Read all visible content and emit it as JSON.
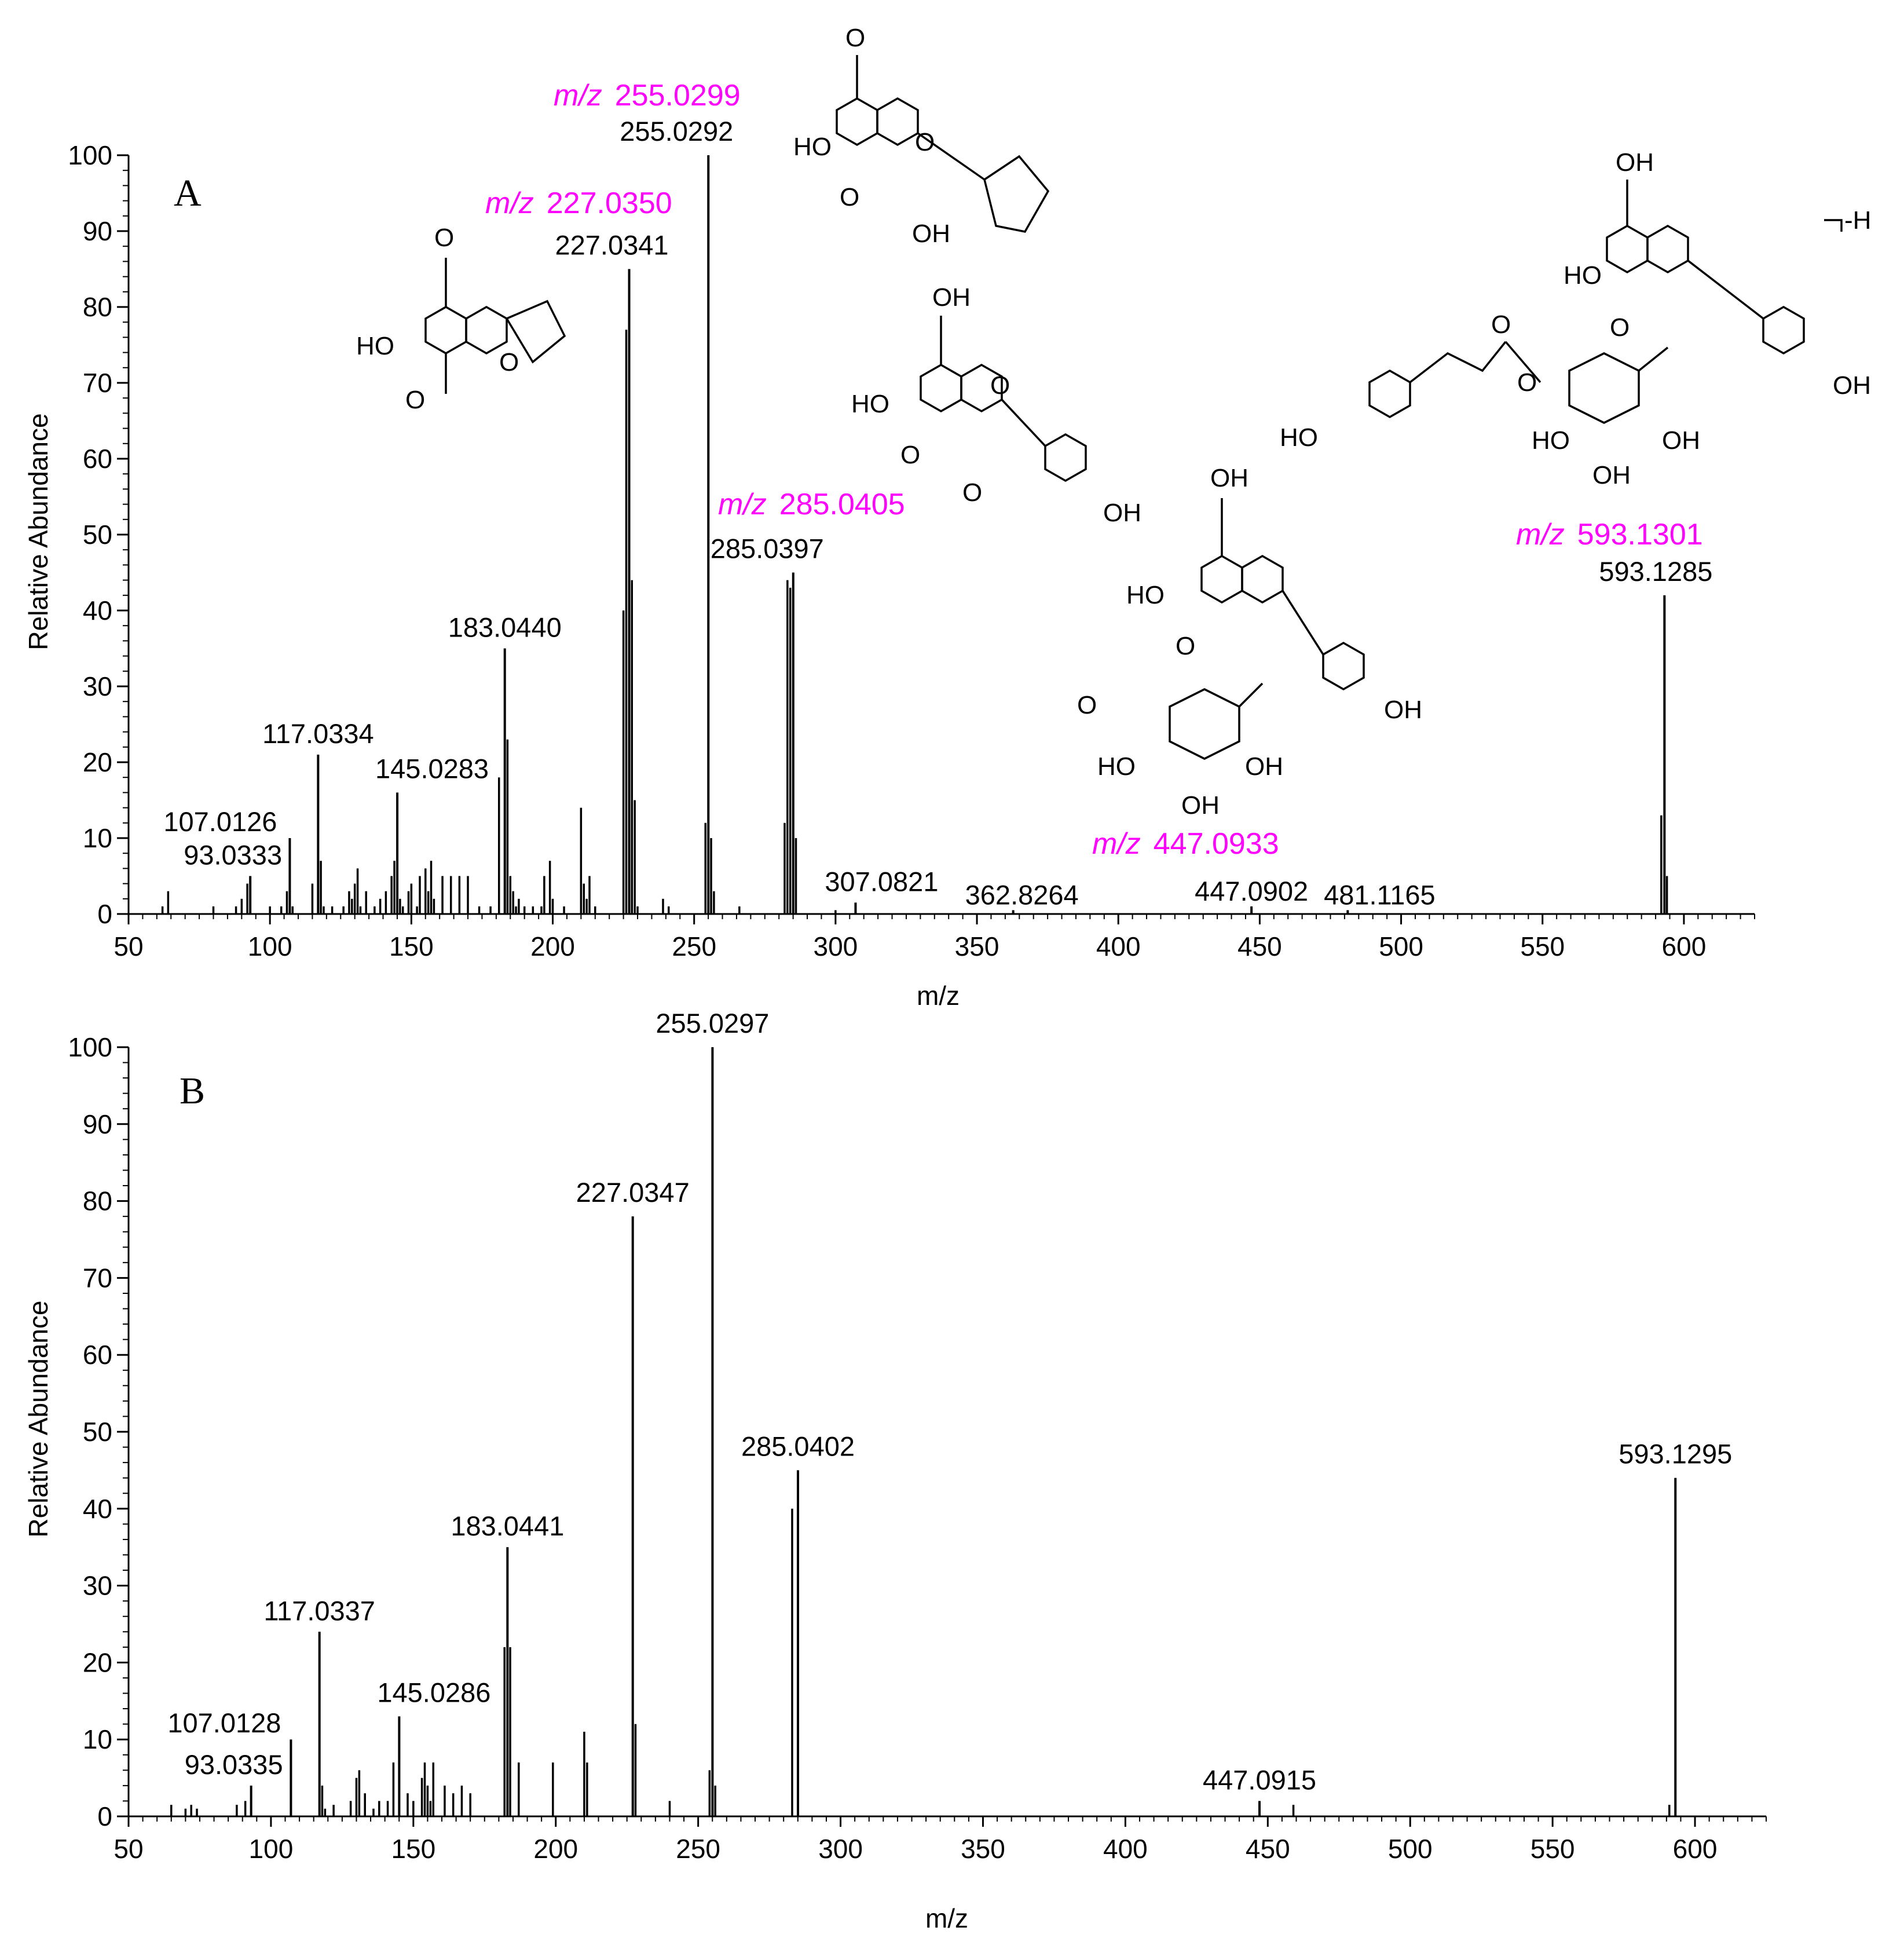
{
  "chart_data": [
    {
      "type": "bar",
      "panel_label": "A",
      "xlabel": "m/z",
      "ylabel": "Relative Abundance",
      "xlim": [
        50,
        625
      ],
      "ylim": [
        0,
        100
      ],
      "x_ticks": [
        "50",
        "100",
        "150",
        "200",
        "250",
        "300",
        "350",
        "400",
        "450",
        "500",
        "550",
        "600"
      ],
      "y_ticks": [
        "0",
        "10",
        "20",
        "30",
        "40",
        "50",
        "60",
        "70",
        "80",
        "90",
        "100"
      ],
      "labeled_peaks": [
        {
          "mz": 93.0333,
          "intensity": 5,
          "label": "93.0333"
        },
        {
          "mz": 107.0126,
          "intensity": 10,
          "label": "107.0126"
        },
        {
          "mz": 117.0334,
          "intensity": 21,
          "label": "117.0334"
        },
        {
          "mz": 145.0283,
          "intensity": 16,
          "label": "145.0283"
        },
        {
          "mz": 183.044,
          "intensity": 35,
          "label": "183.0440"
        },
        {
          "mz": 227.0341,
          "intensity": 85,
          "label": "227.0341"
        },
        {
          "mz": 255.0292,
          "intensity": 100,
          "label": "255.0292"
        },
        {
          "mz": 285.0397,
          "intensity": 45,
          "label": "285.0397"
        },
        {
          "mz": 307.0821,
          "intensity": 1.5,
          "label": "307.0821"
        },
        {
          "mz": 362.8264,
          "intensity": 0.5,
          "label": "362.8264"
        },
        {
          "mz": 447.0902,
          "intensity": 1,
          "label": "447.0902"
        },
        {
          "mz": 481.1165,
          "intensity": 0.5,
          "label": "481.1165"
        },
        {
          "mz": 593.1285,
          "intensity": 42,
          "label": "593.1285"
        }
      ],
      "minor_peaks": [
        [
          62,
          1
        ],
        [
          64,
          3
        ],
        [
          80,
          1
        ],
        [
          88,
          1
        ],
        [
          90,
          2
        ],
        [
          92,
          4
        ],
        [
          100,
          1
        ],
        [
          104,
          1
        ],
        [
          106,
          3
        ],
        [
          108,
          1
        ],
        [
          115,
          4
        ],
        [
          118,
          7
        ],
        [
          119,
          1
        ],
        [
          122,
          1
        ],
        [
          126,
          1
        ],
        [
          128,
          3
        ],
        [
          129,
          2
        ],
        [
          130,
          4
        ],
        [
          131,
          6
        ],
        [
          132,
          1
        ],
        [
          134,
          3
        ],
        [
          137,
          1
        ],
        [
          139,
          2
        ],
        [
          141,
          3
        ],
        [
          143,
          5
        ],
        [
          144,
          7
        ],
        [
          146,
          2
        ],
        [
          147,
          1
        ],
        [
          149,
          3
        ],
        [
          150,
          4
        ],
        [
          152,
          1
        ],
        [
          153,
          5
        ],
        [
          155,
          6
        ],
        [
          156,
          3
        ],
        [
          157,
          7
        ],
        [
          158,
          2
        ],
        [
          161,
          5
        ],
        [
          164,
          5
        ],
        [
          167,
          5
        ],
        [
          170,
          5
        ],
        [
          174,
          1
        ],
        [
          178,
          1
        ],
        [
          181,
          18
        ],
        [
          184,
          23
        ],
        [
          185,
          5
        ],
        [
          186,
          3
        ],
        [
          187,
          1
        ],
        [
          188,
          2
        ],
        [
          190,
          1
        ],
        [
          193,
          1
        ],
        [
          196,
          1
        ],
        [
          197,
          5
        ],
        [
          199,
          7
        ],
        [
          200,
          2
        ],
        [
          204,
          1
        ],
        [
          210,
          14
        ],
        [
          211,
          4
        ],
        [
          212,
          2
        ],
        [
          213,
          5
        ],
        [
          215,
          1
        ],
        [
          225,
          40
        ],
        [
          226,
          77
        ],
        [
          228,
          44
        ],
        [
          229,
          15
        ],
        [
          230,
          1
        ],
        [
          239,
          2
        ],
        [
          241,
          1
        ],
        [
          254,
          12
        ],
        [
          256,
          10
        ],
        [
          257,
          3
        ],
        [
          266,
          1
        ],
        [
          282,
          12
        ],
        [
          283,
          44
        ],
        [
          284,
          43
        ],
        [
          286,
          10
        ],
        [
          300,
          0.5
        ],
        [
          592,
          13
        ],
        [
          594,
          5
        ]
      ],
      "predicted_labels": [
        {
          "prefix": "m/z",
          "value": "255.0299"
        },
        {
          "prefix": "m/z",
          "value": "227.0350"
        },
        {
          "prefix": "m/z",
          "value": "285.0405"
        },
        {
          "prefix": "m/z",
          "value": "593.1301"
        },
        {
          "prefix": "m/z",
          "value": "447.0933"
        }
      ],
      "structure_text": {
        "adduct": "-H"
      }
    },
    {
      "type": "bar",
      "panel_label": "B",
      "xlabel": "m/z",
      "ylabel": "Relative Abundance",
      "xlim": [
        50,
        625
      ],
      "ylim": [
        0,
        100
      ],
      "x_ticks": [
        "50",
        "100",
        "150",
        "200",
        "250",
        "300",
        "350",
        "400",
        "450",
        "500",
        "550",
        "600"
      ],
      "y_ticks": [
        "0",
        "10",
        "20",
        "30",
        "40",
        "50",
        "60",
        "70",
        "80",
        "90",
        "100"
      ],
      "labeled_peaks": [
        {
          "mz": 93.0335,
          "intensity": 4,
          "label": "93.0335"
        },
        {
          "mz": 107.0128,
          "intensity": 10,
          "label": "107.0128"
        },
        {
          "mz": 117.0337,
          "intensity": 24,
          "label": "117.0337"
        },
        {
          "mz": 145.0286,
          "intensity": 13,
          "label": "145.0286"
        },
        {
          "mz": 183.0441,
          "intensity": 35,
          "label": "183.0441"
        },
        {
          "mz": 227.0347,
          "intensity": 78,
          "label": "227.0347"
        },
        {
          "mz": 255.0297,
          "intensity": 100,
          "label": "255.0297"
        },
        {
          "mz": 285.0402,
          "intensity": 45,
          "label": "285.0402"
        },
        {
          "mz": 447.0915,
          "intensity": 2,
          "label": "447.0915"
        },
        {
          "mz": 593.1295,
          "intensity": 44,
          "label": "593.1295"
        }
      ],
      "minor_peaks": [
        [
          65,
          1.5
        ],
        [
          70,
          1
        ],
        [
          72,
          1.5
        ],
        [
          74,
          1
        ],
        [
          88,
          1.5
        ],
        [
          91,
          2
        ],
        [
          118,
          4
        ],
        [
          119,
          1
        ],
        [
          122,
          1.5
        ],
        [
          128,
          2
        ],
        [
          130,
          5
        ],
        [
          131,
          6
        ],
        [
          133,
          3
        ],
        [
          136,
          1
        ],
        [
          138,
          2
        ],
        [
          141,
          2
        ],
        [
          143,
          7
        ],
        [
          148,
          3
        ],
        [
          150,
          2
        ],
        [
          153,
          5
        ],
        [
          154,
          7
        ],
        [
          155,
          4
        ],
        [
          156,
          2
        ],
        [
          157,
          7
        ],
        [
          161,
          4
        ],
        [
          164,
          3
        ],
        [
          167,
          4
        ],
        [
          170,
          3
        ],
        [
          182,
          22
        ],
        [
          184,
          22
        ],
        [
          187,
          7
        ],
        [
          199,
          7
        ],
        [
          210,
          11
        ],
        [
          211,
          7
        ],
        [
          228,
          12
        ],
        [
          240,
          2
        ],
        [
          254,
          6
        ],
        [
          256,
          4
        ],
        [
          283,
          40
        ],
        [
          459,
          1.5
        ],
        [
          591,
          1.5
        ]
      ]
    }
  ]
}
